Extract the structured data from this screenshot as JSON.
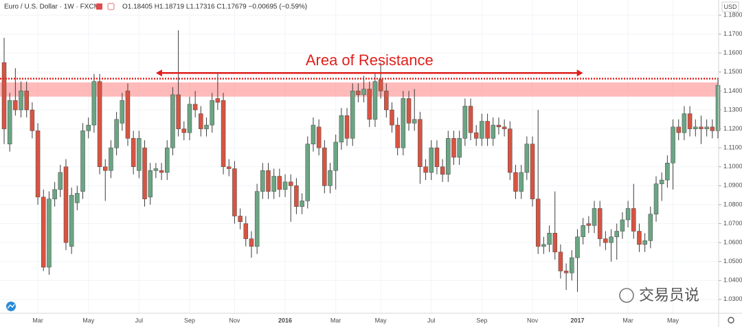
{
  "chart_data": {
    "type": "candlestick",
    "title": "Euro / U.S. Dollar · 1W · FXCM",
    "legend_values": "O1.18405 H1.18719 L1.17316 C1.17679 −0.00695 (−0.59%)",
    "currency": "USD",
    "watermark": "交易员说",
    "up_color": "#6ba583",
    "down_color": "#d75442",
    "wick_color": "#3a3a3a",
    "grid": true,
    "ylim": [
      1.0227,
      1.188
    ],
    "yticks": [
      {
        "value": 1.03,
        "label": "1.03000"
      },
      {
        "value": 1.04,
        "label": "1.04000"
      },
      {
        "value": 1.05,
        "label": "1.05000"
      },
      {
        "value": 1.06,
        "label": "1.06000"
      },
      {
        "value": 1.07,
        "label": "1.07000"
      },
      {
        "value": 1.08,
        "label": "1.08000"
      },
      {
        "value": 1.09,
        "label": "1.09000"
      },
      {
        "value": 1.1,
        "label": "1.10000"
      },
      {
        "value": 1.11,
        "label": "1.11000"
      },
      {
        "value": 1.12,
        "label": "1.12000"
      },
      {
        "value": 1.13,
        "label": "1.13000"
      },
      {
        "value": 1.14,
        "label": "1.14000"
      },
      {
        "value": 1.15,
        "label": "1.15000"
      },
      {
        "value": 1.16,
        "label": "1.16000"
      },
      {
        "value": 1.17,
        "label": "1.17000"
      },
      {
        "value": 1.18,
        "label": "1.18000"
      }
    ],
    "xlim": [
      -0.7,
      127
    ],
    "xticks": [
      {
        "value": 6,
        "label": "Mar"
      },
      {
        "value": 15,
        "label": "May"
      },
      {
        "value": 24,
        "label": "Jul"
      },
      {
        "value": 33,
        "label": "Sep"
      },
      {
        "value": 41,
        "label": "Nov"
      },
      {
        "value": 50,
        "label": "2016"
      },
      {
        "value": 59,
        "label": "Mar"
      },
      {
        "value": 67,
        "label": "May"
      },
      {
        "value": 76,
        "label": "Jul"
      },
      {
        "value": 85,
        "label": "Sep"
      },
      {
        "value": 94,
        "label": "Nov"
      },
      {
        "value": 102,
        "label": "2017"
      },
      {
        "value": 111,
        "label": "Mar"
      },
      {
        "value": 119,
        "label": "May"
      }
    ],
    "resistance": {
      "label": "Area of Resistance",
      "zone": [
        1.137,
        1.1445
      ],
      "line": 1.1465,
      "arrow_y": 1.1495,
      "arrow_x": [
        27,
        103
      ],
      "color": "#e0201c"
    },
    "ohlc": [
      [
        1.155,
        1.168,
        1.112,
        1.12
      ],
      [
        1.112,
        1.139,
        1.108,
        1.135
      ],
      [
        1.135,
        1.152,
        1.127,
        1.13
      ],
      [
        1.13,
        1.145,
        1.126,
        1.14
      ],
      [
        1.14,
        1.145,
        1.126,
        1.13
      ],
      [
        1.13,
        1.134,
        1.115,
        1.119
      ],
      [
        1.119,
        1.123,
        1.08,
        1.084
      ],
      [
        1.084,
        1.088,
        1.045,
        1.047
      ],
      [
        1.047,
        1.087,
        1.043,
        1.083
      ],
      [
        1.083,
        1.092,
        1.079,
        1.088
      ],
      [
        1.088,
        1.101,
        1.084,
        1.097
      ],
      [
        1.1,
        1.104,
        1.056,
        1.06
      ],
      [
        1.058,
        1.089,
        1.054,
        1.085
      ],
      [
        1.081,
        1.09,
        1.077,
        1.086
      ],
      [
        1.087,
        1.123,
        1.083,
        1.119
      ],
      [
        1.119,
        1.126,
        1.115,
        1.122
      ],
      [
        1.122,
        1.149,
        1.118,
        1.145
      ],
      [
        1.145,
        1.149,
        1.096,
        1.1
      ],
      [
        1.1,
        1.104,
        1.082,
        1.098
      ],
      [
        1.098,
        1.114,
        1.094,
        1.11
      ],
      [
        1.11,
        1.129,
        1.106,
        1.125
      ],
      [
        1.123,
        1.139,
        1.119,
        1.135
      ],
      [
        1.14,
        1.144,
        1.111,
        1.115
      ],
      [
        1.115,
        1.119,
        1.096,
        1.1
      ],
      [
        1.098,
        1.119,
        1.094,
        1.115
      ],
      [
        1.11,
        1.114,
        1.079,
        1.083
      ],
      [
        1.084,
        1.102,
        1.08,
        1.098
      ],
      [
        1.098,
        1.102,
        1.094,
        1.099
      ],
      [
        1.098,
        1.102,
        1.093,
        1.097
      ],
      [
        1.097,
        1.114,
        1.093,
        1.11
      ],
      [
        1.11,
        1.142,
        1.106,
        1.138
      ],
      [
        1.138,
        1.172,
        1.116,
        1.12
      ],
      [
        1.12,
        1.124,
        1.114,
        1.118
      ],
      [
        1.118,
        1.137,
        1.114,
        1.133
      ],
      [
        1.133,
        1.14,
        1.126,
        1.13
      ],
      [
        1.128,
        1.132,
        1.116,
        1.12
      ],
      [
        1.12,
        1.126,
        1.116,
        1.122
      ],
      [
        1.122,
        1.139,
        1.118,
        1.135
      ],
      [
        1.136,
        1.149,
        1.13,
        1.134
      ],
      [
        1.135,
        1.139,
        1.096,
        1.1
      ],
      [
        1.1,
        1.104,
        1.095,
        1.099
      ],
      [
        1.099,
        1.103,
        1.07,
        1.074
      ],
      [
        1.074,
        1.078,
        1.067,
        1.071
      ],
      [
        1.07,
        1.074,
        1.058,
        1.062
      ],
      [
        1.062,
        1.066,
        1.052,
        1.058
      ],
      [
        1.058,
        1.091,
        1.054,
        1.087
      ],
      [
        1.087,
        1.102,
        1.083,
        1.098
      ],
      [
        1.098,
        1.102,
        1.083,
        1.087
      ],
      [
        1.087,
        1.099,
        1.083,
        1.095
      ],
      [
        1.095,
        1.099,
        1.084,
        1.088
      ],
      [
        1.088,
        1.096,
        1.084,
        1.092
      ],
      [
        1.092,
        1.096,
        1.071,
        1.09
      ],
      [
        1.09,
        1.094,
        1.075,
        1.079
      ],
      [
        1.079,
        1.086,
        1.075,
        1.082
      ],
      [
        1.082,
        1.116,
        1.078,
        1.112
      ],
      [
        1.112,
        1.126,
        1.108,
        1.122
      ],
      [
        1.121,
        1.125,
        1.106,
        1.11
      ],
      [
        1.11,
        1.114,
        1.086,
        1.09
      ],
      [
        1.09,
        1.102,
        1.086,
        1.098
      ],
      [
        1.098,
        1.117,
        1.088,
        1.113
      ],
      [
        1.113,
        1.131,
        1.109,
        1.127
      ],
      [
        1.127,
        1.131,
        1.111,
        1.115
      ],
      [
        1.115,
        1.144,
        1.111,
        1.14
      ],
      [
        1.14,
        1.144,
        1.134,
        1.138
      ],
      [
        1.138,
        1.148,
        1.134,
        1.141
      ],
      [
        1.141,
        1.145,
        1.121,
        1.125
      ],
      [
        1.125,
        1.149,
        1.121,
        1.145
      ],
      [
        1.146,
        1.155,
        1.136,
        1.14
      ],
      [
        1.14,
        1.144,
        1.126,
        1.13
      ],
      [
        1.13,
        1.134,
        1.118,
        1.122
      ],
      [
        1.122,
        1.126,
        1.106,
        1.11
      ],
      [
        1.11,
        1.14,
        1.106,
        1.136
      ],
      [
        1.136,
        1.14,
        1.119,
        1.123
      ],
      [
        1.123,
        1.141,
        1.119,
        1.125
      ],
      [
        1.125,
        1.129,
        1.091,
        1.1
      ],
      [
        1.1,
        1.104,
        1.093,
        1.097
      ],
      [
        1.097,
        1.114,
        1.093,
        1.11
      ],
      [
        1.11,
        1.114,
        1.096,
        1.1
      ],
      [
        1.1,
        1.104,
        1.092,
        1.096
      ],
      [
        1.096,
        1.119,
        1.092,
        1.115
      ],
      [
        1.115,
        1.119,
        1.101,
        1.105
      ],
      [
        1.105,
        1.119,
        1.101,
        1.115
      ],
      [
        1.115,
        1.136,
        1.111,
        1.132
      ],
      [
        1.132,
        1.136,
        1.114,
        1.118
      ],
      [
        1.118,
        1.122,
        1.111,
        1.115
      ],
      [
        1.115,
        1.128,
        1.111,
        1.124
      ],
      [
        1.124,
        1.128,
        1.111,
        1.115
      ],
      [
        1.115,
        1.126,
        1.111,
        1.122
      ],
      [
        1.122,
        1.126,
        1.117,
        1.121
      ],
      [
        1.121,
        1.125,
        1.116,
        1.12
      ],
      [
        1.12,
        1.124,
        1.093,
        1.097
      ],
      [
        1.097,
        1.101,
        1.083,
        1.087
      ],
      [
        1.087,
        1.101,
        1.083,
        1.097
      ],
      [
        1.097,
        1.116,
        1.093,
        1.112
      ],
      [
        1.112,
        1.116,
        1.079,
        1.083
      ],
      [
        1.083,
        1.13,
        1.054,
        1.058
      ],
      [
        1.058,
        1.063,
        1.054,
        1.059
      ],
      [
        1.059,
        1.069,
        1.055,
        1.065
      ],
      [
        1.065,
        1.087,
        1.051,
        1.055
      ],
      [
        1.055,
        1.059,
        1.041,
        1.045
      ],
      [
        1.045,
        1.049,
        1.035,
        1.044
      ],
      [
        1.044,
        1.056,
        1.04,
        1.052
      ],
      [
        1.052,
        1.067,
        1.034,
        1.063
      ],
      [
        1.063,
        1.073,
        1.059,
        1.069
      ],
      [
        1.07,
        1.074,
        1.065,
        1.069
      ],
      [
        1.069,
        1.082,
        1.065,
        1.078
      ],
      [
        1.078,
        1.082,
        1.058,
        1.062
      ],
      [
        1.062,
        1.066,
        1.056,
        1.06
      ],
      [
        1.06,
        1.067,
        1.05,
        1.063
      ],
      [
        1.063,
        1.07,
        1.051,
        1.066
      ],
      [
        1.066,
        1.076,
        1.062,
        1.072
      ],
      [
        1.072,
        1.082,
        1.068,
        1.078
      ],
      [
        1.078,
        1.091,
        1.062,
        1.066
      ],
      [
        1.066,
        1.07,
        1.055,
        1.059
      ],
      [
        1.059,
        1.065,
        1.055,
        1.061
      ],
      [
        1.061,
        1.079,
        1.057,
        1.075
      ],
      [
        1.075,
        1.095,
        1.071,
        1.091
      ],
      [
        1.091,
        1.097,
        1.082,
        1.093
      ],
      [
        1.093,
        1.106,
        1.089,
        1.102
      ],
      [
        1.102,
        1.125,
        1.088,
        1.121
      ],
      [
        1.121,
        1.125,
        1.114,
        1.118
      ],
      [
        1.118,
        1.132,
        1.114,
        1.128
      ],
      [
        1.128,
        1.132,
        1.116,
        1.12
      ],
      [
        1.12,
        1.125,
        1.116,
        1.121
      ],
      [
        1.121,
        1.127,
        1.112,
        1.12
      ],
      [
        1.12,
        1.125,
        1.116,
        1.121
      ],
      [
        1.121,
        1.125,
        1.115,
        1.119
      ],
      [
        1.119,
        1.147,
        1.115,
        1.143
      ]
    ]
  }
}
